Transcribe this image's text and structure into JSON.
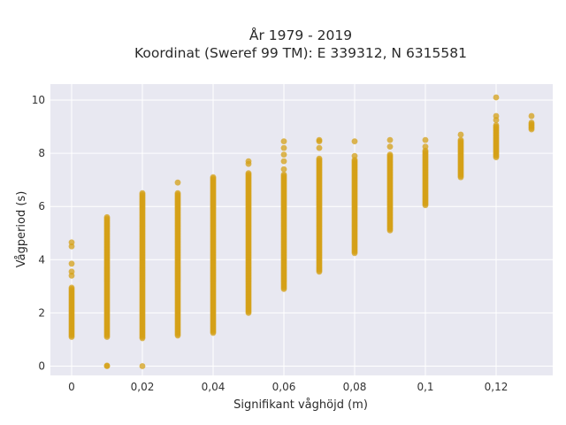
{
  "chart_data": {
    "type": "scatter",
    "title_lines": [
      "År 1979 - 2019",
      "Koordinat (Sweref 99 TM): E 339312, N 6315581"
    ],
    "xlabel": "Signifikant våghöjd (m)",
    "ylabel": "Vågperiod (s)",
    "xlim": [
      -0.006,
      0.136
    ],
    "ylim": [
      -0.35,
      10.6
    ],
    "x_ticks": [
      0,
      0.02,
      0.04,
      0.06,
      0.08,
      0.1,
      0.12
    ],
    "x_tick_labels": [
      "0",
      "0,02",
      "0,04",
      "0,06",
      "0,08",
      "0,1",
      "0,12"
    ],
    "y_ticks": [
      0,
      2,
      4,
      6,
      8,
      10
    ],
    "y_tick_labels": [
      "0",
      "2",
      "4",
      "6",
      "8",
      "10"
    ],
    "grid": true,
    "marker_color": "#d4a017",
    "plot_bg": "#e8e8f1",
    "series": [
      {
        "columns": [
          {
            "x": 0,
            "range": [
              1.1,
              2.95
            ],
            "outliers": [
              3.4,
              3.55,
              3.85,
              4.5,
              4.65
            ]
          },
          {
            "x": 0.01,
            "range": [
              1.1,
              5.6
            ],
            "outliers": [
              0,
              0.02
            ]
          },
          {
            "x": 0.02,
            "range": [
              1.05,
              6.5
            ],
            "outliers": [
              0
            ]
          },
          {
            "x": 0.03,
            "range": [
              1.15,
              6.5
            ],
            "outliers": [
              6.9
            ]
          },
          {
            "x": 0.04,
            "range": [
              1.25,
              7.1
            ],
            "outliers": []
          },
          {
            "x": 0.05,
            "range": [
              2.0,
              7.25
            ],
            "outliers": [
              7.6,
              7.7
            ]
          },
          {
            "x": 0.06,
            "range": [
              2.9,
              7.2
            ],
            "outliers": [
              7.4,
              7.7,
              7.95,
              8.2,
              8.45
            ]
          },
          {
            "x": 0.07,
            "range": [
              3.55,
              7.8
            ],
            "outliers": [
              8.2,
              8.45,
              8.5
            ]
          },
          {
            "x": 0.08,
            "range": [
              4.25,
              7.75
            ],
            "outliers": [
              7.9,
              8.45
            ]
          },
          {
            "x": 0.09,
            "range": [
              5.1,
              7.95
            ],
            "outliers": [
              8.25,
              8.5
            ]
          },
          {
            "x": 0.1,
            "range": [
              6.05,
              8.1
            ],
            "outliers": [
              8.25,
              8.5
            ]
          },
          {
            "x": 0.11,
            "range": [
              7.1,
              8.5
            ],
            "outliers": [
              8.7
            ]
          },
          {
            "x": 0.12,
            "range": [
              7.85,
              9.05
            ],
            "outliers": [
              9.25,
              9.4,
              10.1
            ]
          },
          {
            "x": 0.13,
            "range": [
              8.9,
              9.15
            ],
            "outliers": [
              9.4
            ]
          }
        ]
      }
    ]
  }
}
